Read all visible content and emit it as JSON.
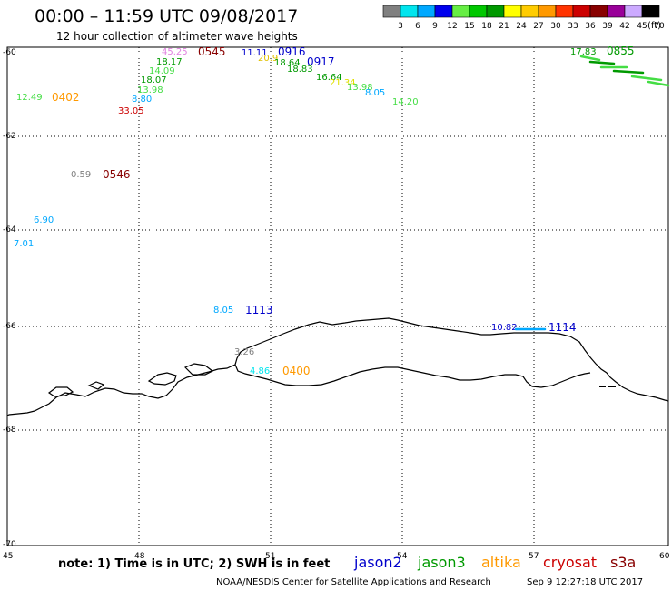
{
  "header": {
    "title": "00:00 – 11:59 UTC 09/08/2017",
    "subtitle": "12 hour collection of altimeter wave heights"
  },
  "legend": {
    "bins": [
      {
        "label": "3",
        "color": "#808080"
      },
      {
        "label": "6",
        "color": "#00e5ee"
      },
      {
        "label": "9",
        "color": "#00a8ff"
      },
      {
        "label": "12",
        "color": "#0000ee"
      },
      {
        "label": "15",
        "color": "#66ee44"
      },
      {
        "label": "18",
        "color": "#00c800"
      },
      {
        "label": "21",
        "color": "#009900"
      },
      {
        "label": "24",
        "color": "#ffff00"
      },
      {
        "label": "27",
        "color": "#ffcc00"
      },
      {
        "label": "30",
        "color": "#ff9900"
      },
      {
        "label": "33",
        "color": "#ff3300"
      },
      {
        "label": "36",
        "color": "#cc0000"
      },
      {
        "label": "39",
        "color": "#880000"
      },
      {
        "label": "42",
        "color": "#990099"
      },
      {
        "label": "45",
        "color": "#ccaaff"
      },
      {
        "label": "70",
        "color": "#000000"
      }
    ],
    "unit": "(ft)"
  },
  "axes": {
    "lat_labels": [
      "-60",
      "-62",
      "-64",
      "-66",
      "-68",
      "-70"
    ],
    "lon_labels": [
      "45",
      "48",
      "51",
      "54",
      "57",
      "60"
    ]
  },
  "observations": [
    {
      "text": "45.25",
      "color": "#e080e0"
    },
    {
      "text": "0545",
      "color": "#880000"
    },
    {
      "text": "11.11",
      "color": "#0000cc"
    },
    {
      "text": "0916",
      "color": "#0000cc"
    },
    {
      "text": "20.9",
      "color": "#e0c000"
    },
    {
      "text": "18.17",
      "color": "#009900"
    },
    {
      "text": "14.09",
      "color": "#44dd44"
    },
    {
      "text": "18.07",
      "color": "#009900"
    },
    {
      "text": "13.98",
      "color": "#44dd44"
    },
    {
      "text": "8.80",
      "color": "#00a8ff"
    },
    {
      "text": "33.05",
      "color": "#cc0000"
    },
    {
      "text": "12.49",
      "color": "#44dd44"
    },
    {
      "text": "0402",
      "color": "#ff9900"
    },
    {
      "text": "18.64",
      "color": "#009900"
    },
    {
      "text": "0917",
      "color": "#0000cc"
    },
    {
      "text": "18.83",
      "color": "#009900"
    },
    {
      "text": "16.64",
      "color": "#009900"
    },
    {
      "text": "21.34",
      "color": "#e0e000"
    },
    {
      "text": "13.98",
      "color": "#44dd44"
    },
    {
      "text": "8.05",
      "color": "#00a8ff"
    },
    {
      "text": "14.20",
      "color": "#44dd44"
    },
    {
      "text": "17.83",
      "color": "#009900"
    },
    {
      "text": "0855",
      "color": "#009900"
    },
    {
      "text": "0.59",
      "color": "#808080"
    },
    {
      "text": "0546",
      "color": "#880000"
    },
    {
      "text": "6.90",
      "color": "#00a8ff"
    },
    {
      "text": "7.01",
      "color": "#00a8ff"
    },
    {
      "text": "8.05",
      "color": "#00a8ff"
    },
    {
      "text": "1113",
      "color": "#0000cc"
    },
    {
      "text": "10.82",
      "color": "#0000cc"
    },
    {
      "text": "1114",
      "color": "#0000cc"
    },
    {
      "text": "3.26",
      "color": "#808080"
    },
    {
      "text": "4.86",
      "color": "#00e5ee"
    },
    {
      "text": "0400",
      "color": "#ff9900"
    }
  ],
  "satellites": [
    {
      "name": "jason2",
      "color": "#0000cc"
    },
    {
      "name": "jason3",
      "color": "#009900"
    },
    {
      "name": "altika",
      "color": "#ff9900"
    },
    {
      "name": "cryosat",
      "color": "#cc0000"
    },
    {
      "name": "s3a",
      "color": "#880000"
    }
  ],
  "footer": {
    "note": "note: 1) Time is in UTC; 2) SWH is in feet",
    "credit": "NOAA/NESDIS Center for Satellite Applications and Research",
    "timestamp": "Sep  9 12:27:18 UTC 2017"
  }
}
